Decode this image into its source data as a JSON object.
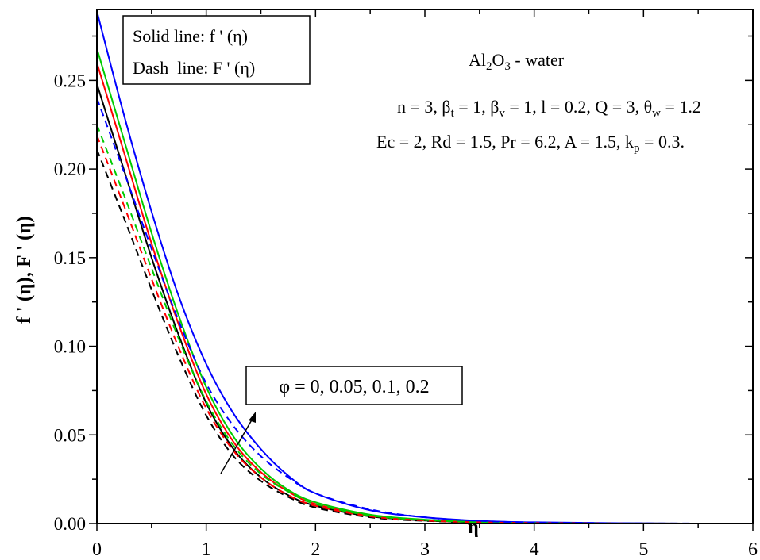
{
  "chart_data": {
    "type": "line",
    "xlabel": "η",
    "ylabel": "f ' (η), F ' (η)",
    "xlim": [
      0,
      6
    ],
    "ylim": [
      0,
      0.29
    ],
    "grid": false,
    "xticks": [
      "0",
      "1",
      "2",
      "3",
      "4",
      "5",
      "6"
    ],
    "yticks": [
      "0.00",
      "0.05",
      "0.10",
      "0.15",
      "0.20",
      "0.25"
    ],
    "x": [
      0,
      0.25,
      0.5,
      0.75,
      1,
      1.25,
      1.5,
      1.75,
      2,
      2.5,
      3,
      3.5,
      4,
      5,
      6
    ],
    "series": [
      {
        "name": "f'(η), φ=0",
        "style": "solid",
        "color": "#000000",
        "values": [
          0.248,
          0.199,
          0.15,
          0.106,
          0.068,
          0.042,
          0.026,
          0.016,
          0.01,
          0.004,
          0.0017,
          0.0007,
          0.0003,
          5e-05,
          0
        ]
      },
      {
        "name": "f'(η), φ=0.05",
        "style": "solid",
        "color": "#ff0000",
        "values": [
          0.26,
          0.209,
          0.158,
          0.112,
          0.073,
          0.046,
          0.029,
          0.018,
          0.011,
          0.0045,
          0.002,
          0.0008,
          0.0003,
          5e-05,
          0
        ]
      },
      {
        "name": "f'(η), φ=0.1",
        "style": "solid",
        "color": "#00cc00",
        "values": [
          0.268,
          0.216,
          0.164,
          0.117,
          0.077,
          0.049,
          0.031,
          0.019,
          0.012,
          0.005,
          0.0022,
          0.0009,
          0.0004,
          6e-05,
          0
        ]
      },
      {
        "name": "f'(η), φ=0.2",
        "style": "solid",
        "color": "#0000ff",
        "values": [
          0.289,
          0.23,
          0.176,
          0.128,
          0.09,
          0.062,
          0.042,
          0.027,
          0.017,
          0.0075,
          0.0035,
          0.0015,
          0.0007,
          0.0001,
          0
        ]
      },
      {
        "name": "F'(η), φ=0",
        "style": "dash",
        "color": "#000000",
        "values": [
          0.211,
          0.172,
          0.132,
          0.094,
          0.061,
          0.038,
          0.024,
          0.015,
          0.009,
          0.0035,
          0.0015,
          0.0006,
          0.0002,
          0,
          0
        ]
      },
      {
        "name": "F'(η), φ=0.05",
        "style": "dash",
        "color": "#ff0000",
        "values": [
          0.219,
          0.179,
          0.138,
          0.099,
          0.065,
          0.041,
          0.026,
          0.016,
          0.01,
          0.004,
          0.0017,
          0.0007,
          0.0003,
          0,
          0
        ]
      },
      {
        "name": "F'(η), φ=0.1",
        "style": "dash",
        "color": "#00cc00",
        "values": [
          0.225,
          0.185,
          0.144,
          0.104,
          0.069,
          0.044,
          0.028,
          0.018,
          0.011,
          0.0045,
          0.002,
          0.0008,
          0.0003,
          0,
          0
        ]
      },
      {
        "name": "F'(η), φ=0.2",
        "style": "dash",
        "color": "#0000ff",
        "values": [
          0.24,
          0.198,
          0.155,
          0.114,
          0.079,
          0.055,
          0.038,
          0.026,
          0.017,
          0.008,
          0.0035,
          0.0015,
          0.0006,
          0.0001,
          0
        ]
      }
    ],
    "legend": {
      "position": "top-left",
      "lines": [
        "Solid line: f ' (η)",
        "Dash  line: F ' (η)"
      ]
    },
    "annotations": {
      "fluid": [
        {
          "t": "Al"
        },
        {
          "t": "2",
          "sub": true
        },
        {
          "t": "O"
        },
        {
          "t": "3",
          "sub": true
        },
        {
          "t": " - water"
        }
      ],
      "params1": [
        {
          "t": "n = 3, β"
        },
        {
          "t": "t",
          "sub": true
        },
        {
          "t": " = 1, β"
        },
        {
          "t": "v",
          "sub": true
        },
        {
          "t": " = 1, l = 0.2, Q = 3, θ"
        },
        {
          "t": "w",
          "sub": true
        },
        {
          "t": " = 1.2"
        }
      ],
      "params2": [
        {
          "t": "Ec = 2, Rd = 1.5, Pr = 6.2, A = 1.5, k"
        },
        {
          "t": "p",
          "sub": true
        },
        {
          "t": " = 0.3."
        }
      ],
      "phi_box": "φ = 0, 0.05, 0.1, 0.2"
    }
  }
}
